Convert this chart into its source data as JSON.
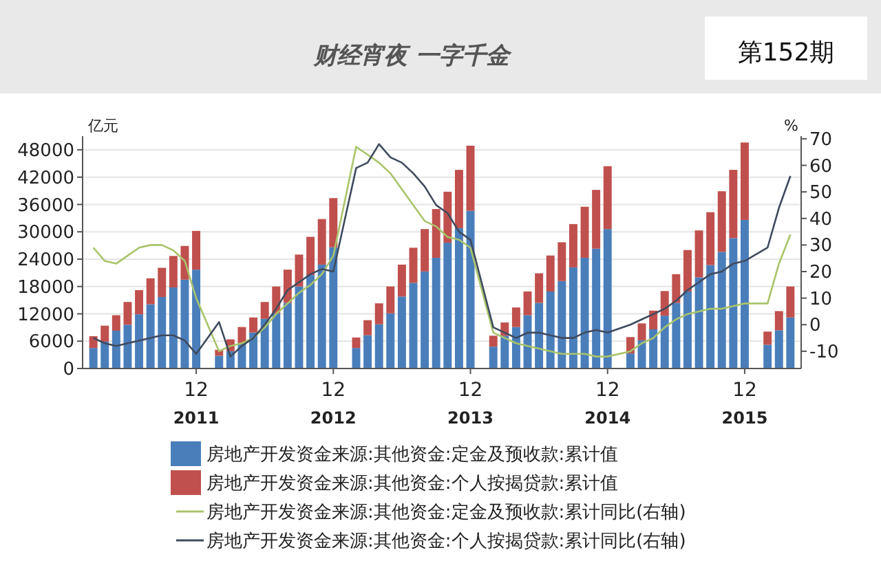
{
  "chart_data": {
    "type": "bar",
    "title": "财经宵夜 一字千金",
    "subtitle": "第152期",
    "ylabel": "亿元",
    "y2label": "%",
    "categories": [
      null,
      null,
      null,
      null,
      null,
      null,
      null,
      null,
      null,
      "12",
      null,
      null,
      null,
      null,
      null,
      null,
      null,
      null,
      null,
      null,
      null,
      "12",
      null,
      null,
      null,
      null,
      null,
      null,
      null,
      null,
      null,
      null,
      null,
      "12",
      null,
      null,
      null,
      null,
      null,
      null,
      null,
      null,
      null,
      null,
      null,
      "12",
      null,
      null,
      null,
      null,
      null,
      null,
      null,
      null,
      null,
      null,
      null,
      "12",
      null,
      null,
      null,
      null
    ],
    "annotations": [
      "2011",
      "2012",
      "2013",
      "2014",
      "2015"
    ],
    "stacked": true,
    "grid": "y",
    "legend": "bottom",
    "marker": "none",
    "line_style": "solid",
    "ylim": [
      0,
      51000
    ],
    "yticks": [
      0,
      6000,
      12000,
      18000,
      24000,
      30000,
      36000,
      42000,
      48000
    ],
    "y2lim": [
      -16.5,
      71
    ],
    "y2ticks": [
      -10,
      0,
      10,
      20,
      30,
      40,
      50,
      60,
      70
    ],
    "series": [
      {
        "name": "房地产开发资金来源:其他资金:定金及预收款:累计值",
        "color": "#4a7ebb",
        "values": [
          4500,
          5900,
          8300,
          9600,
          11900,
          14100,
          15700,
          17800,
          19500,
          21700,
          null,
          2800,
          3800,
          5600,
          7900,
          10900,
          12100,
          14400,
          18000,
          20500,
          22800,
          26600,
          null,
          4500,
          7300,
          9700,
          12100,
          15800,
          18800,
          21300,
          24300,
          27600,
          30800,
          34600,
          null,
          4800,
          7200,
          9100,
          11700,
          14400,
          16900,
          19200,
          22200,
          24300,
          26300,
          30600,
          null,
          3300,
          6200,
          8600,
          11600,
          14400,
          16900,
          20000,
          22700,
          25600,
          28600,
          32600,
          null,
          5200,
          8400,
          11200
        ]
      },
      {
        "name": "房地产开发资金来源:其他资金:个人按揭贷款:累计值",
        "color": "#c0504d",
        "values": [
          2600,
          3500,
          3400,
          5000,
          5300,
          5700,
          6400,
          6900,
          7400,
          8500,
          null,
          1300,
          2600,
          3500,
          3300,
          3700,
          5900,
          7300,
          7000,
          8400,
          10000,
          10800,
          null,
          2300,
          3300,
          4600,
          5900,
          7000,
          7700,
          9300,
          10700,
          11200,
          12800,
          14300,
          null,
          2400,
          2900,
          4300,
          5200,
          6500,
          7900,
          8500,
          9500,
          11200,
          12900,
          13800,
          null,
          3600,
          3700,
          4100,
          5400,
          6300,
          9100,
          10300,
          11600,
          13300,
          15000,
          17000,
          null,
          2900,
          4200,
          6800
        ]
      },
      {
        "name": "房地产开发资金来源:其他资金:定金及预收款:累计同比(右轴)",
        "type": "line",
        "axis": "y2",
        "color": "#a9c46a",
        "values": [
          29,
          24,
          23,
          26,
          29,
          30,
          30,
          28,
          24,
          10,
          null,
          -10,
          -8,
          -7,
          -5,
          -1,
          4,
          8,
          12,
          15,
          19,
          26,
          null,
          67,
          64,
          61,
          57,
          51,
          45,
          39,
          37,
          33,
          32,
          29,
          null,
          -3,
          -5,
          -7,
          -8,
          -9,
          -10,
          -11,
          -11,
          -11,
          -12,
          -12,
          null,
          -10,
          -7,
          -5,
          -1,
          2,
          4,
          5,
          6,
          6,
          7,
          8,
          null,
          8,
          23,
          34
        ]
      },
      {
        "name": "房地产开发资金来源:其他资金:个人按揭贷款:累计同比(右轴)",
        "type": "line",
        "axis": "y2",
        "color": "#3f4a5e",
        "values": [
          -5,
          -7,
          -8,
          -7,
          -6,
          -5,
          -4,
          -4,
          -6,
          -11,
          null,
          1,
          -12,
          -8,
          -5,
          0,
          6,
          13,
          16,
          19,
          21,
          20,
          null,
          59,
          61,
          68,
          63,
          61,
          57,
          52,
          45,
          42,
          35,
          32,
          null,
          -1,
          -3,
          -5,
          -3,
          -3,
          -4,
          -5,
          -5,
          -3,
          -2,
          -3,
          null,
          0,
          2,
          4,
          6,
          9,
          13,
          16,
          19,
          20,
          23,
          24,
          null,
          29,
          44,
          56
        ]
      }
    ]
  }
}
